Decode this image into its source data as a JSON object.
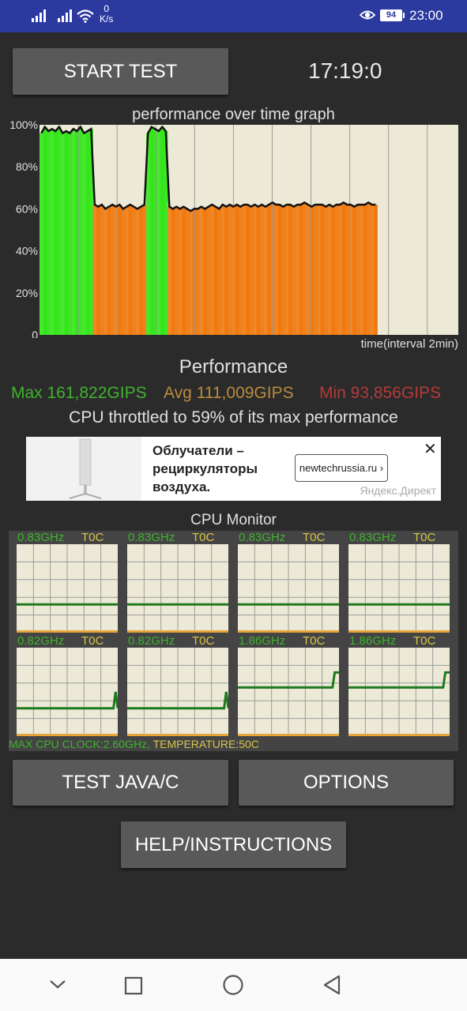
{
  "status_bar": {
    "speed_value": "0",
    "speed_unit": "K/s",
    "battery": "94",
    "time": "23:00",
    "icons": [
      "signal-icon",
      "signal-icon",
      "wifi-icon",
      "eye-icon",
      "battery-icon"
    ]
  },
  "controls": {
    "start_label": "START TEST",
    "clock": "17:19:0",
    "java_label": "TEST JAVA/C",
    "options_label": "OPTIONS",
    "help_label": "HELP/INSTRUCTIONS"
  },
  "chart_data": {
    "type": "area",
    "title": "performance over time graph",
    "xlabel": "time(interval 2min)",
    "ylabel": "",
    "y_tick_labels": [
      "100%",
      "80%",
      "60%",
      "40%",
      "20%",
      "0"
    ],
    "ylim": [
      0,
      100
    ],
    "grid": true,
    "colors": {
      "high": "#33e61a",
      "low": "#f07a10",
      "line": "#111111",
      "background": "#ecead7"
    },
    "series": [
      {
        "values": [
          96,
          99,
          97,
          98,
          97,
          99,
          96,
          97,
          96,
          98,
          97,
          99,
          96,
          97,
          98,
          62,
          61,
          62,
          60,
          61,
          62,
          61,
          62,
          60,
          61,
          62,
          61,
          60,
          61,
          62,
          96,
          99,
          98,
          97,
          99,
          97,
          61,
          60,
          61,
          60,
          61,
          60,
          59,
          60,
          60,
          61,
          60,
          61,
          62,
          61,
          60,
          62,
          61,
          62,
          61,
          62,
          61,
          62,
          62,
          61,
          62,
          61,
          62,
          61,
          62,
          63,
          62,
          62,
          61,
          62,
          62,
          61,
          62,
          62,
          63,
          62,
          61,
          62,
          62,
          62,
          61,
          62,
          61,
          62,
          62,
          63,
          62,
          62,
          61,
          62,
          62,
          62,
          63,
          62,
          62
        ]
      }
    ]
  },
  "performance": {
    "title": "Performance",
    "max": "Max 161,822GIPS",
    "avg": "Avg 111,009GIPS",
    "min": "Min 93,856GIPS",
    "throttle": "CPU throttled to 59% of its max performance"
  },
  "ad": {
    "text": "Облучатели – рециркуляторы воздуха.",
    "cta": "newtechrussia.ru",
    "brand": "Яндекс.Директ",
    "close": "✕"
  },
  "cpu_monitor": {
    "title": "CPU Monitor",
    "cores": [
      {
        "freq": "0.83GHz",
        "temp": "T0C",
        "level": 0.32,
        "history": [
          0.32,
          0.32,
          0.32,
          0.32,
          0.32,
          0.32,
          0.32,
          0.32,
          0.32,
          0.32,
          0.32,
          0.32
        ]
      },
      {
        "freq": "0.83GHz",
        "temp": "T0C",
        "level": 0.32,
        "history": [
          0.32,
          0.32,
          0.32,
          0.32,
          0.32,
          0.32,
          0.32,
          0.32,
          0.32,
          0.32,
          0.32,
          0.32
        ]
      },
      {
        "freq": "0.83GHz",
        "temp": "T0C",
        "level": 0.32,
        "history": [
          0.32,
          0.32,
          0.32,
          0.32,
          0.32,
          0.32,
          0.32,
          0.32,
          0.32,
          0.32,
          0.32,
          0.32
        ]
      },
      {
        "freq": "0.83GHz",
        "temp": "T0C",
        "level": 0.32,
        "history": [
          0.32,
          0.32,
          0.32,
          0.32,
          0.32,
          0.32,
          0.32,
          0.32,
          0.32,
          0.32,
          0.32,
          0.32
        ]
      },
      {
        "freq": "0.82GHz",
        "temp": "T0C",
        "level": 0.31,
        "history": [
          0.315,
          0.315,
          0.315,
          0.315,
          0.315,
          0.315,
          0.315,
          0.315,
          0.315,
          0.315,
          0.315,
          0.315,
          0.315,
          0.315,
          0.315,
          0.315,
          0.315,
          0.315,
          0.315,
          0.315,
          0.315,
          0.315,
          0.315,
          0.315,
          0.315,
          0.315,
          0.315,
          0.315,
          0.315,
          0.315,
          0.315,
          0.315,
          0.315,
          0.315,
          0.315,
          0.315,
          0.315,
          0.315,
          0.315,
          0.315,
          0.315,
          0.315,
          0.315,
          0.315,
          0.315,
          0.315,
          0.5,
          0.315
        ]
      },
      {
        "freq": "0.82GHz",
        "temp": "T0C",
        "level": 0.31,
        "history": [
          0.315,
          0.315,
          0.315,
          0.315,
          0.315,
          0.315,
          0.315,
          0.315,
          0.315,
          0.315,
          0.315,
          0.315,
          0.315,
          0.315,
          0.315,
          0.315,
          0.315,
          0.315,
          0.315,
          0.315,
          0.315,
          0.315,
          0.315,
          0.315,
          0.315,
          0.315,
          0.315,
          0.315,
          0.315,
          0.315,
          0.315,
          0.315,
          0.315,
          0.315,
          0.315,
          0.315,
          0.315,
          0.315,
          0.315,
          0.315,
          0.315,
          0.315,
          0.315,
          0.315,
          0.315,
          0.315,
          0.5,
          0.315
        ]
      },
      {
        "freq": "1.86GHz",
        "temp": "T0C",
        "level": 0.72,
        "history": [
          0.55,
          0.55,
          0.55,
          0.55,
          0.55,
          0.55,
          0.55,
          0.55,
          0.55,
          0.55,
          0.55,
          0.55,
          0.55,
          0.55,
          0.55,
          0.55,
          0.55,
          0.55,
          0.55,
          0.55,
          0.55,
          0.55,
          0.55,
          0.55,
          0.55,
          0.55,
          0.55,
          0.55,
          0.55,
          0.55,
          0.55,
          0.55,
          0.55,
          0.55,
          0.55,
          0.55,
          0.55,
          0.55,
          0.55,
          0.55,
          0.55,
          0.55,
          0.55,
          0.55,
          0.55,
          0.72,
          0.72,
          0.72
        ]
      },
      {
        "freq": "1.86GHz",
        "temp": "T0C",
        "level": 0.72,
        "history": [
          0.55,
          0.55,
          0.55,
          0.55,
          0.55,
          0.55,
          0.55,
          0.55,
          0.55,
          0.55,
          0.55,
          0.55,
          0.55,
          0.55,
          0.55,
          0.55,
          0.55,
          0.55,
          0.55,
          0.55,
          0.55,
          0.55,
          0.55,
          0.55,
          0.55,
          0.55,
          0.55,
          0.55,
          0.55,
          0.55,
          0.55,
          0.55,
          0.55,
          0.55,
          0.55,
          0.55,
          0.55,
          0.55,
          0.55,
          0.55,
          0.55,
          0.55,
          0.55,
          0.55,
          0.55,
          0.72,
          0.72,
          0.72
        ]
      }
    ],
    "summary_clock": "MAX CPU CLOCK:2.60GHz,",
    "summary_temp": " TEMPERATURE:50C"
  },
  "nav_bar": {
    "icons": [
      "chevron-down-icon",
      "recents-icon",
      "home-icon",
      "back-icon"
    ]
  }
}
